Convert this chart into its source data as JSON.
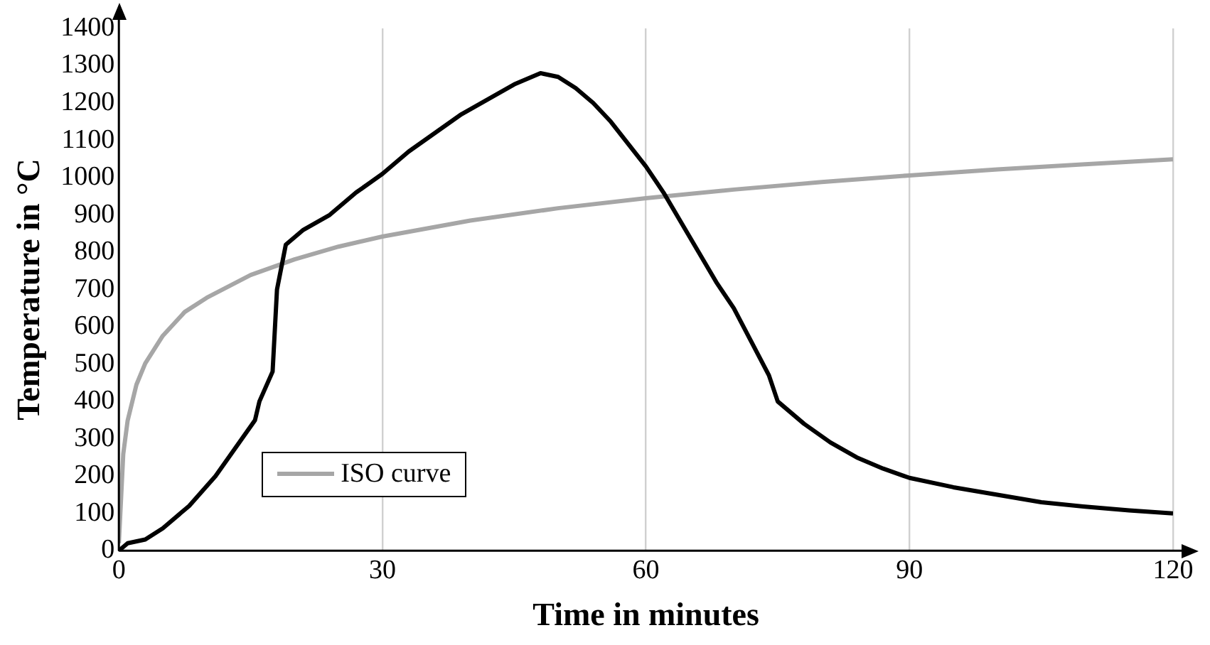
{
  "chart_data": {
    "type": "line",
    "xlabel": "Time in minutes",
    "ylabel": "Temperature in °C",
    "xlim": [
      0,
      120
    ],
    "xticks": [
      0,
      30,
      60,
      90,
      120
    ],
    "ylim": [
      0,
      1400
    ],
    "yticks": [
      0,
      100,
      200,
      300,
      400,
      500,
      600,
      700,
      800,
      900,
      1000,
      1100,
      1200,
      1300,
      1400
    ],
    "grid": "x",
    "legend": "bottom left",
    "marker": "none",
    "line_style": "solid",
    "series": [
      {
        "color": "#000000",
        "x": [
          0,
          1,
          3,
          5,
          8,
          11,
          14,
          15.5,
          16,
          17.5,
          18,
          19,
          21,
          24,
          27,
          30,
          33,
          36,
          39,
          42,
          45,
          47,
          48,
          50,
          52,
          54,
          56,
          58,
          60,
          62,
          64,
          66,
          68,
          70,
          72,
          74,
          75,
          78,
          81,
          84,
          87,
          90,
          95,
          100,
          105,
          110,
          115,
          120
        ],
        "values": [
          0,
          20,
          30,
          60,
          120,
          200,
          300,
          350,
          400,
          480,
          700,
          820,
          860,
          900,
          960,
          1010,
          1070,
          1120,
          1170,
          1210,
          1250,
          1270,
          1280,
          1270,
          1240,
          1200,
          1150,
          1090,
          1030,
          960,
          880,
          800,
          720,
          650,
          560,
          470,
          400,
          340,
          290,
          250,
          220,
          195,
          170,
          150,
          130,
          118,
          108,
          100
        ]
      },
      {
        "name": "ISO curve",
        "color": "#a6a6a6",
        "x": [
          0,
          0.5,
          1,
          2,
          3,
          5,
          7.5,
          10,
          15,
          20,
          25,
          30,
          40,
          50,
          60,
          70,
          80,
          90,
          100,
          110,
          120
        ],
        "values": [
          20,
          259,
          349,
          445,
          502,
          576,
          640,
          678,
          739,
          781,
          815,
          842,
          885,
          918,
          945,
          968,
          988,
          1006,
          1022,
          1036,
          1049
        ]
      }
    ]
  }
}
